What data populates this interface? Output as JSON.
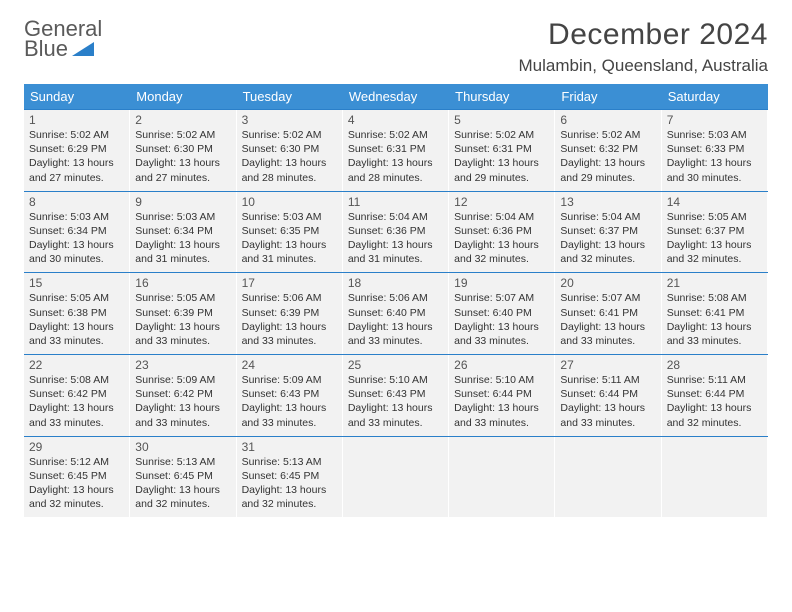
{
  "logo": {
    "line1": "General",
    "line2": "Blue",
    "shape_color": "#2a7fc9"
  },
  "title": "December 2024",
  "location": "Mulambin, Queensland, Australia",
  "colors": {
    "header_bg": "#3b8fd4",
    "header_text": "#ffffff",
    "row_divider": "#2a7fc9",
    "cell_bg": "#f2f2f2",
    "cell_alt_bg": "#e9eef3",
    "text": "#333333",
    "logo_gray": "#5a5a5a"
  },
  "day_names": [
    "Sunday",
    "Monday",
    "Tuesday",
    "Wednesday",
    "Thursday",
    "Friday",
    "Saturday"
  ],
  "weeks": [
    [
      {
        "day": "1",
        "sunrise": "Sunrise: 5:02 AM",
        "sunset": "Sunset: 6:29 PM",
        "daylight": "Daylight: 13 hours and 27 minutes."
      },
      {
        "day": "2",
        "sunrise": "Sunrise: 5:02 AM",
        "sunset": "Sunset: 6:30 PM",
        "daylight": "Daylight: 13 hours and 27 minutes."
      },
      {
        "day": "3",
        "sunrise": "Sunrise: 5:02 AM",
        "sunset": "Sunset: 6:30 PM",
        "daylight": "Daylight: 13 hours and 28 minutes."
      },
      {
        "day": "4",
        "sunrise": "Sunrise: 5:02 AM",
        "sunset": "Sunset: 6:31 PM",
        "daylight": "Daylight: 13 hours and 28 minutes."
      },
      {
        "day": "5",
        "sunrise": "Sunrise: 5:02 AM",
        "sunset": "Sunset: 6:31 PM",
        "daylight": "Daylight: 13 hours and 29 minutes."
      },
      {
        "day": "6",
        "sunrise": "Sunrise: 5:02 AM",
        "sunset": "Sunset: 6:32 PM",
        "daylight": "Daylight: 13 hours and 29 minutes."
      },
      {
        "day": "7",
        "sunrise": "Sunrise: 5:03 AM",
        "sunset": "Sunset: 6:33 PM",
        "daylight": "Daylight: 13 hours and 30 minutes."
      }
    ],
    [
      {
        "day": "8",
        "sunrise": "Sunrise: 5:03 AM",
        "sunset": "Sunset: 6:34 PM",
        "daylight": "Daylight: 13 hours and 30 minutes."
      },
      {
        "day": "9",
        "sunrise": "Sunrise: 5:03 AM",
        "sunset": "Sunset: 6:34 PM",
        "daylight": "Daylight: 13 hours and 31 minutes."
      },
      {
        "day": "10",
        "sunrise": "Sunrise: 5:03 AM",
        "sunset": "Sunset: 6:35 PM",
        "daylight": "Daylight: 13 hours and 31 minutes."
      },
      {
        "day": "11",
        "sunrise": "Sunrise: 5:04 AM",
        "sunset": "Sunset: 6:36 PM",
        "daylight": "Daylight: 13 hours and 31 minutes."
      },
      {
        "day": "12",
        "sunrise": "Sunrise: 5:04 AM",
        "sunset": "Sunset: 6:36 PM",
        "daylight": "Daylight: 13 hours and 32 minutes."
      },
      {
        "day": "13",
        "sunrise": "Sunrise: 5:04 AM",
        "sunset": "Sunset: 6:37 PM",
        "daylight": "Daylight: 13 hours and 32 minutes."
      },
      {
        "day": "14",
        "sunrise": "Sunrise: 5:05 AM",
        "sunset": "Sunset: 6:37 PM",
        "daylight": "Daylight: 13 hours and 32 minutes."
      }
    ],
    [
      {
        "day": "15",
        "sunrise": "Sunrise: 5:05 AM",
        "sunset": "Sunset: 6:38 PM",
        "daylight": "Daylight: 13 hours and 33 minutes."
      },
      {
        "day": "16",
        "sunrise": "Sunrise: 5:05 AM",
        "sunset": "Sunset: 6:39 PM",
        "daylight": "Daylight: 13 hours and 33 minutes."
      },
      {
        "day": "17",
        "sunrise": "Sunrise: 5:06 AM",
        "sunset": "Sunset: 6:39 PM",
        "daylight": "Daylight: 13 hours and 33 minutes."
      },
      {
        "day": "18",
        "sunrise": "Sunrise: 5:06 AM",
        "sunset": "Sunset: 6:40 PM",
        "daylight": "Daylight: 13 hours and 33 minutes."
      },
      {
        "day": "19",
        "sunrise": "Sunrise: 5:07 AM",
        "sunset": "Sunset: 6:40 PM",
        "daylight": "Daylight: 13 hours and 33 minutes."
      },
      {
        "day": "20",
        "sunrise": "Sunrise: 5:07 AM",
        "sunset": "Sunset: 6:41 PM",
        "daylight": "Daylight: 13 hours and 33 minutes."
      },
      {
        "day": "21",
        "sunrise": "Sunrise: 5:08 AM",
        "sunset": "Sunset: 6:41 PM",
        "daylight": "Daylight: 13 hours and 33 minutes."
      }
    ],
    [
      {
        "day": "22",
        "sunrise": "Sunrise: 5:08 AM",
        "sunset": "Sunset: 6:42 PM",
        "daylight": "Daylight: 13 hours and 33 minutes."
      },
      {
        "day": "23",
        "sunrise": "Sunrise: 5:09 AM",
        "sunset": "Sunset: 6:42 PM",
        "daylight": "Daylight: 13 hours and 33 minutes."
      },
      {
        "day": "24",
        "sunrise": "Sunrise: 5:09 AM",
        "sunset": "Sunset: 6:43 PM",
        "daylight": "Daylight: 13 hours and 33 minutes."
      },
      {
        "day": "25",
        "sunrise": "Sunrise: 5:10 AM",
        "sunset": "Sunset: 6:43 PM",
        "daylight": "Daylight: 13 hours and 33 minutes."
      },
      {
        "day": "26",
        "sunrise": "Sunrise: 5:10 AM",
        "sunset": "Sunset: 6:44 PM",
        "daylight": "Daylight: 13 hours and 33 minutes."
      },
      {
        "day": "27",
        "sunrise": "Sunrise: 5:11 AM",
        "sunset": "Sunset: 6:44 PM",
        "daylight": "Daylight: 13 hours and 33 minutes."
      },
      {
        "day": "28",
        "sunrise": "Sunrise: 5:11 AM",
        "sunset": "Sunset: 6:44 PM",
        "daylight": "Daylight: 13 hours and 32 minutes."
      }
    ],
    [
      {
        "day": "29",
        "sunrise": "Sunrise: 5:12 AM",
        "sunset": "Sunset: 6:45 PM",
        "daylight": "Daylight: 13 hours and 32 minutes."
      },
      {
        "day": "30",
        "sunrise": "Sunrise: 5:13 AM",
        "sunset": "Sunset: 6:45 PM",
        "daylight": "Daylight: 13 hours and 32 minutes."
      },
      {
        "day": "31",
        "sunrise": "Sunrise: 5:13 AM",
        "sunset": "Sunset: 6:45 PM",
        "daylight": "Daylight: 13 hours and 32 minutes."
      },
      null,
      null,
      null,
      null
    ]
  ]
}
